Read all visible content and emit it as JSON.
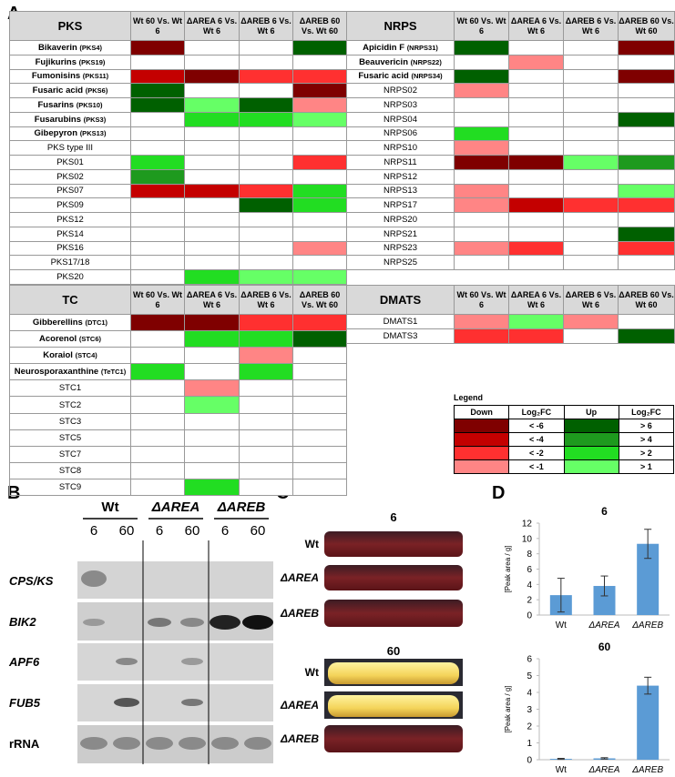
{
  "panel_labels": [
    "A",
    "B",
    "C",
    "D"
  ],
  "heatmap": {
    "legend_title": "Legend",
    "legend_headers": [
      "Down",
      "Log₂FC",
      "Up",
      "Log₂FC"
    ],
    "down": [
      {
        "level": -6,
        "label": "< -6",
        "color": "#7f0000"
      },
      {
        "level": -4,
        "label": "< -4",
        "color": "#c40000"
      },
      {
        "level": -2,
        "label": "< -2",
        "color": "#ff3030"
      },
      {
        "level": -1,
        "label": "< -1",
        "color": "#ff8585"
      }
    ],
    "up": [
      {
        "level": 6,
        "label": "> 6",
        "color": "#006000"
      },
      {
        "level": 4,
        "label": "> 4",
        "color": "#1e9a1e"
      },
      {
        "level": 2,
        "label": "> 2",
        "color": "#22dd22"
      },
      {
        "level": 1,
        "label": "> 1",
        "color": "#66ff66"
      }
    ],
    "tables": [
      {
        "title": "PKS",
        "columns": [
          "Wt 60 Vs. Wt 6",
          "ΔAREA 6 Vs. Wt 6",
          "ΔAREB 6 Vs. Wt 6",
          "ΔAREB 60 Vs. Wt 60"
        ],
        "rows": [
          {
            "name": "Bikaverin",
            "code": "(PKS4)",
            "values": [
              -6,
              null,
              null,
              6
            ]
          },
          {
            "name": "Fujikurins",
            "code": "(PKS19)",
            "values": [
              null,
              null,
              null,
              null
            ]
          },
          {
            "name": "Fumonisins",
            "code": "(PKS11)",
            "values": [
              -4,
              -6,
              -2,
              -2
            ]
          },
          {
            "name": "Fusaric acid",
            "code": "(PKS6)",
            "values": [
              6,
              null,
              null,
              -6
            ]
          },
          {
            "name": "Fusarins",
            "code": "(PKS10)",
            "values": [
              6,
              1,
              6,
              -1
            ]
          },
          {
            "name": "Fusarubins",
            "code": "(PKS3)",
            "values": [
              null,
              2,
              2,
              1
            ]
          },
          {
            "name": "Gibepyron",
            "code": "(PKS13)",
            "values": [
              null,
              null,
              null,
              null
            ]
          },
          {
            "name": "PKS type III",
            "values": [
              null,
              null,
              null,
              null
            ]
          },
          {
            "name": "PKS01",
            "values": [
              2,
              null,
              null,
              -2
            ]
          },
          {
            "name": "PKS02",
            "values": [
              4,
              null,
              null,
              null
            ]
          },
          {
            "name": "PKS07",
            "values": [
              -4,
              -4,
              -2,
              2
            ]
          },
          {
            "name": "PKS09",
            "values": [
              null,
              null,
              6,
              2
            ]
          },
          {
            "name": "PKS12",
            "values": [
              null,
              null,
              null,
              null
            ]
          },
          {
            "name": "PKS14",
            "values": [
              null,
              null,
              null,
              null
            ]
          },
          {
            "name": "PKS16",
            "values": [
              null,
              null,
              null,
              -1
            ]
          },
          {
            "name": "PKS17/18",
            "values": [
              null,
              null,
              null,
              null
            ]
          },
          {
            "name": "PKS20",
            "values": [
              null,
              2,
              1,
              1
            ]
          }
        ]
      },
      {
        "title": "NRPS",
        "columns": [
          "Wt 60 Vs. Wt 6",
          "ΔAREA 6 Vs. Wt 6",
          "ΔAREB 6 Vs. Wt 6",
          "ΔAREB 60 Vs. Wt 60"
        ],
        "rows": [
          {
            "name": "Apicidin F",
            "code": "(NRPS31)",
            "values": [
              6,
              null,
              null,
              -6
            ]
          },
          {
            "name": "Beauvericin",
            "code": "(NRPS22)",
            "values": [
              null,
              -1,
              null,
              null
            ]
          },
          {
            "name": "Fusaric acid",
            "code": "(NRPS34)",
            "values": [
              6,
              null,
              null,
              -6
            ]
          },
          {
            "name": "NRPS02",
            "values": [
              -1,
              null,
              null,
              null
            ]
          },
          {
            "name": "NRPS03",
            "values": [
              null,
              null,
              null,
              null
            ]
          },
          {
            "name": "NRPS04",
            "values": [
              null,
              null,
              null,
              6
            ]
          },
          {
            "name": "NRPS06",
            "values": [
              2,
              null,
              null,
              null
            ]
          },
          {
            "name": "NRPS10",
            "values": [
              -1,
              null,
              null,
              null
            ]
          },
          {
            "name": "NRPS11",
            "values": [
              -6,
              -6,
              1,
              4
            ]
          },
          {
            "name": "NRPS12",
            "values": [
              null,
              null,
              null,
              null
            ]
          },
          {
            "name": "NRPS13",
            "values": [
              -1,
              null,
              null,
              1
            ]
          },
          {
            "name": "NRPS17",
            "values": [
              -1,
              -4,
              -2,
              -2
            ]
          },
          {
            "name": "NRPS20",
            "values": [
              null,
              null,
              null,
              null
            ]
          },
          {
            "name": "NRPS21",
            "values": [
              null,
              null,
              null,
              6
            ]
          },
          {
            "name": "NRPS23",
            "values": [
              -1,
              -2,
              null,
              -2
            ]
          },
          {
            "name": "NRPS25",
            "values": [
              null,
              null,
              null,
              null
            ]
          }
        ]
      },
      {
        "title": "TC",
        "columns": [
          "Wt 60 Vs. Wt 6",
          "ΔAREA 6 Vs. Wt 6",
          "ΔAREB 6 Vs. Wt 6",
          "ΔAREB 60 Vs. Wt 60"
        ],
        "rows": [
          {
            "name": "Gibberellins",
            "code": "(DTC1)",
            "values": [
              -6,
              -6,
              -2,
              -2
            ]
          },
          {
            "name": "Acorenol",
            "code": "(STC6)",
            "values": [
              null,
              2,
              2,
              6
            ]
          },
          {
            "name": "Koraiol",
            "code": "(STC4)",
            "values": [
              null,
              null,
              -1,
              null
            ]
          },
          {
            "name": "Neurosporaxanthine",
            "code": "(TeTC1)",
            "values": [
              2,
              null,
              2,
              null
            ]
          },
          {
            "name": "STC1",
            "values": [
              null,
              -1,
              null,
              null
            ]
          },
          {
            "name": "STC2",
            "values": [
              null,
              1,
              null,
              null
            ]
          },
          {
            "name": "STC3",
            "values": [
              null,
              null,
              null,
              null
            ]
          },
          {
            "name": "STC5",
            "values": [
              null,
              null,
              null,
              null
            ]
          },
          {
            "name": "STC7",
            "values": [
              null,
              null,
              null,
              null
            ]
          },
          {
            "name": "STC8",
            "values": [
              null,
              null,
              null,
              null
            ]
          },
          {
            "name": "STC9",
            "values": [
              null,
              2,
              null,
              null
            ]
          }
        ]
      },
      {
        "title": "DMATS",
        "columns": [
          "Wt 60 Vs. Wt 6",
          "ΔAREA 6 Vs. Wt 6",
          "ΔAREB 6 Vs. Wt 6",
          "ΔAREB 60 Vs. Wt 60"
        ],
        "rows": [
          {
            "name": "DMATS1",
            "values": [
              -1,
              1,
              -1,
              null
            ]
          },
          {
            "name": "DMATS3",
            "values": [
              -2,
              -2,
              null,
              6
            ]
          }
        ]
      }
    ]
  },
  "northern": {
    "groups": [
      "Wt",
      "ΔAREA",
      "ΔAREB"
    ],
    "lanes": [
      "6",
      "60",
      "6",
      "60",
      "6",
      "60"
    ],
    "probes": [
      "CPS/KS",
      "BIK2",
      "APF6",
      "FUB5",
      "rRNA"
    ]
  },
  "cultures": {
    "timepoints": [
      {
        "label": "6",
        "strains": [
          "Wt",
          "ΔAREA",
          "ΔAREB"
        ]
      },
      {
        "label": "60",
        "strains": [
          "Wt",
          "ΔAREA",
          "ΔAREB"
        ]
      }
    ]
  },
  "chart_data": [
    {
      "type": "bar",
      "title": "6",
      "y_label": "[Peak area / g]",
      "categories": [
        "Wt",
        "ΔAREA",
        "ΔAREB"
      ],
      "values": [
        2.6,
        3.8,
        9.3
      ],
      "errors": [
        2.2,
        1.3,
        1.9
      ],
      "color": "#5b9bd5",
      "ylim": [
        0,
        12
      ],
      "yticks": [
        0,
        2,
        4,
        6,
        8,
        10,
        12
      ]
    },
    {
      "type": "bar",
      "title": "60",
      "y_label": "[Peak area / g]",
      "categories": [
        "Wt",
        "ΔAREA",
        "ΔAREB"
      ],
      "values": [
        0.05,
        0.08,
        4.4
      ],
      "errors": [
        0.03,
        0.04,
        0.5
      ],
      "color": "#5b9bd5",
      "ylim": [
        0,
        6
      ],
      "yticks": [
        0,
        1,
        2,
        3,
        4,
        5,
        6
      ]
    }
  ]
}
